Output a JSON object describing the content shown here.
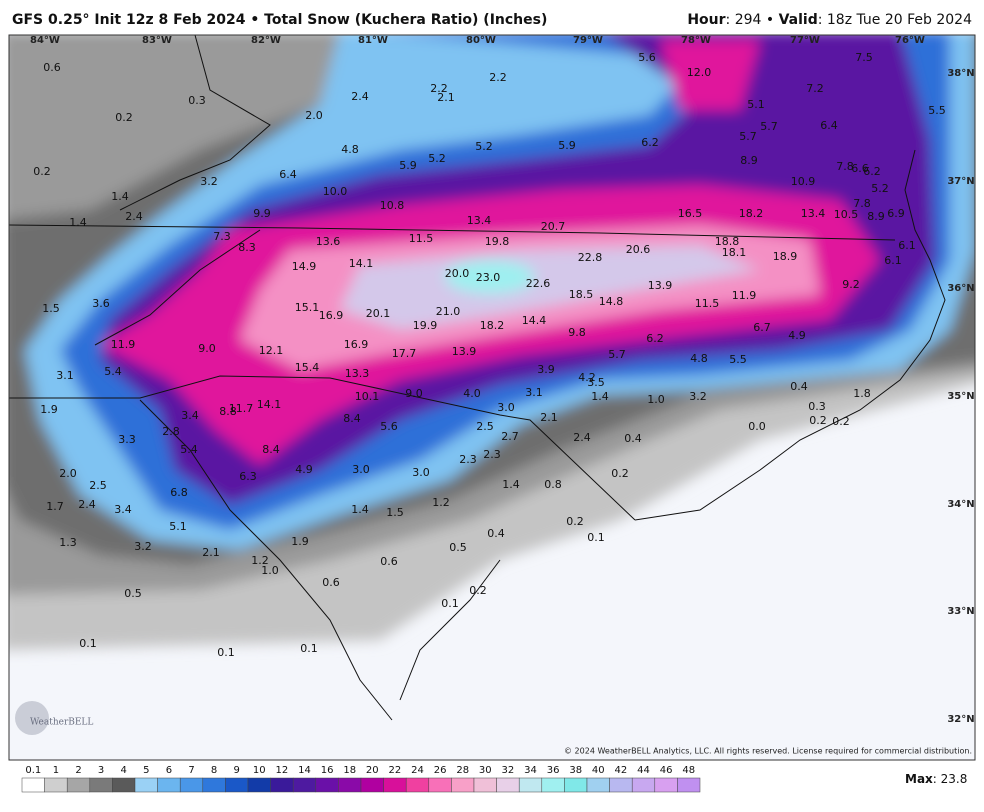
{
  "header": {
    "title": "GFS 0.25° Init 12z 8 Feb 2024 • Total Snow (Kuchera Ratio) (Inches)",
    "hour_label": "Hour",
    "hour": ": 294 • ",
    "valid_label": "Valid",
    "valid": ": 18z Tue 20 Feb 2024"
  },
  "longitudes": [
    "84°W",
    "83°W",
    "82°W",
    "81°W",
    "80°W",
    "79°W",
    "78°W",
    "77°W",
    "76°W"
  ],
  "latitudes": [
    "38°N",
    "37°N",
    "36°N",
    "35°N",
    "34°N",
    "33°N",
    "32°N"
  ],
  "map_labels": [
    "0.6",
    "0.3",
    "0.2",
    "2.0",
    "2.4",
    "2.2",
    "2.1",
    "2.2",
    "5.6",
    "12.0",
    "7.5",
    "7.2",
    "5.1",
    "5.7",
    "5.7",
    "6.4",
    "5.5",
    "4.8",
    "5.9",
    "5.2",
    "5.2",
    "5.9",
    "6.2",
    "8.9",
    "0.2",
    "3.2",
    "6.4",
    "10.0",
    "10.9",
    "7.8",
    "6.6",
    "6.2",
    "5.2",
    "7.8",
    "1.4",
    "2.4",
    "1.4",
    "9.9",
    "10.8",
    "13.4",
    "20.7",
    "16.5",
    "18.2",
    "13.4",
    "10.5",
    "8.9",
    "6.9",
    "7.3",
    "8.3",
    "13.6",
    "11.5",
    "19.8",
    "18.8",
    "6.1",
    "14.9",
    "14.1",
    "22.8",
    "20.6",
    "18.1",
    "18.9",
    "6.1",
    "20.0",
    "23.0",
    "22.6",
    "13.9",
    "9.2",
    "1.5",
    "3.6",
    "15.1",
    "16.9",
    "20.1",
    "21.0",
    "18.5",
    "14.8",
    "11.5",
    "11.9",
    "19.9",
    "18.2",
    "14.4",
    "9.8",
    "6.7",
    "4.9",
    "6.2",
    "11.9",
    "9.0",
    "12.1",
    "16.9",
    "17.7",
    "13.9",
    "5.7",
    "4.8",
    "5.5",
    "3.1",
    "5.4",
    "15.4",
    "13.3",
    "3.9",
    "4.2",
    "3.5",
    "0.4",
    "10.1",
    "9.0",
    "4.0",
    "3.1",
    "1.4",
    "1.0",
    "3.2",
    "1.8",
    "11.7",
    "8.8",
    "14.1",
    "0.3",
    "1.9",
    "3.4",
    "8.4",
    "5.6",
    "3.0",
    "2.1",
    "0.2",
    "0.2",
    "0.0",
    "2.8",
    "2.5",
    "2.7",
    "2.4",
    "0.4",
    "3.3",
    "5.4",
    "8.4",
    "2.3",
    "2.3",
    "4.9",
    "3.0",
    "3.0",
    "0.2",
    "2.0",
    "6.3",
    "2.5",
    "1.4",
    "0.8",
    "6.8",
    "1.7",
    "2.4",
    "3.4",
    "1.4",
    "1.5",
    "1.2",
    "0.2",
    "5.1",
    "0.4",
    "0.1",
    "1.3",
    "3.2",
    "1.9",
    "0.5",
    "2.1",
    "1.2",
    "1.0",
    "0.6",
    "0.6",
    "0.2",
    "0.5",
    "0.1",
    "0.1",
    "0.1",
    "0.1"
  ],
  "colorbar": {
    "labels": [
      "0.1",
      "1",
      "2",
      "3",
      "4",
      "5",
      "6",
      "7",
      "8",
      "9",
      "10",
      "12",
      "14",
      "16",
      "18",
      "20",
      "22",
      "24",
      "26",
      "28",
      "30",
      "32",
      "34",
      "36",
      "38",
      "40",
      "42",
      "44",
      "46",
      "48"
    ],
    "colors": [
      "#ffffff",
      "#cfcfcf",
      "#a6a6a6",
      "#7a7a7a",
      "#5a5a5a",
      "#9ad1f5",
      "#6bb5ef",
      "#4a97e8",
      "#2f78dc",
      "#1a58c8",
      "#123ba8",
      "#3a1a9a",
      "#4e1aa0",
      "#6a10a8",
      "#8a0aa8",
      "#b000a0",
      "#d8109a",
      "#f040a0",
      "#f870b8",
      "#f8a0c8",
      "#f0c0d8",
      "#e8d0e8",
      "#c0e8f0",
      "#a0f0f0",
      "#80e8e8",
      "#a0d0f0",
      "#b8b8f0",
      "#c8a8f0",
      "#d8a0f0",
      "#c090f0"
    ]
  },
  "max_label": "Max",
  "max_value": ": 23.8",
  "logo": "WeatherBELL",
  "copyright": "© 2024 WeatherBELL Analytics, LLC. All rights reserved. License required for commercial distribution."
}
